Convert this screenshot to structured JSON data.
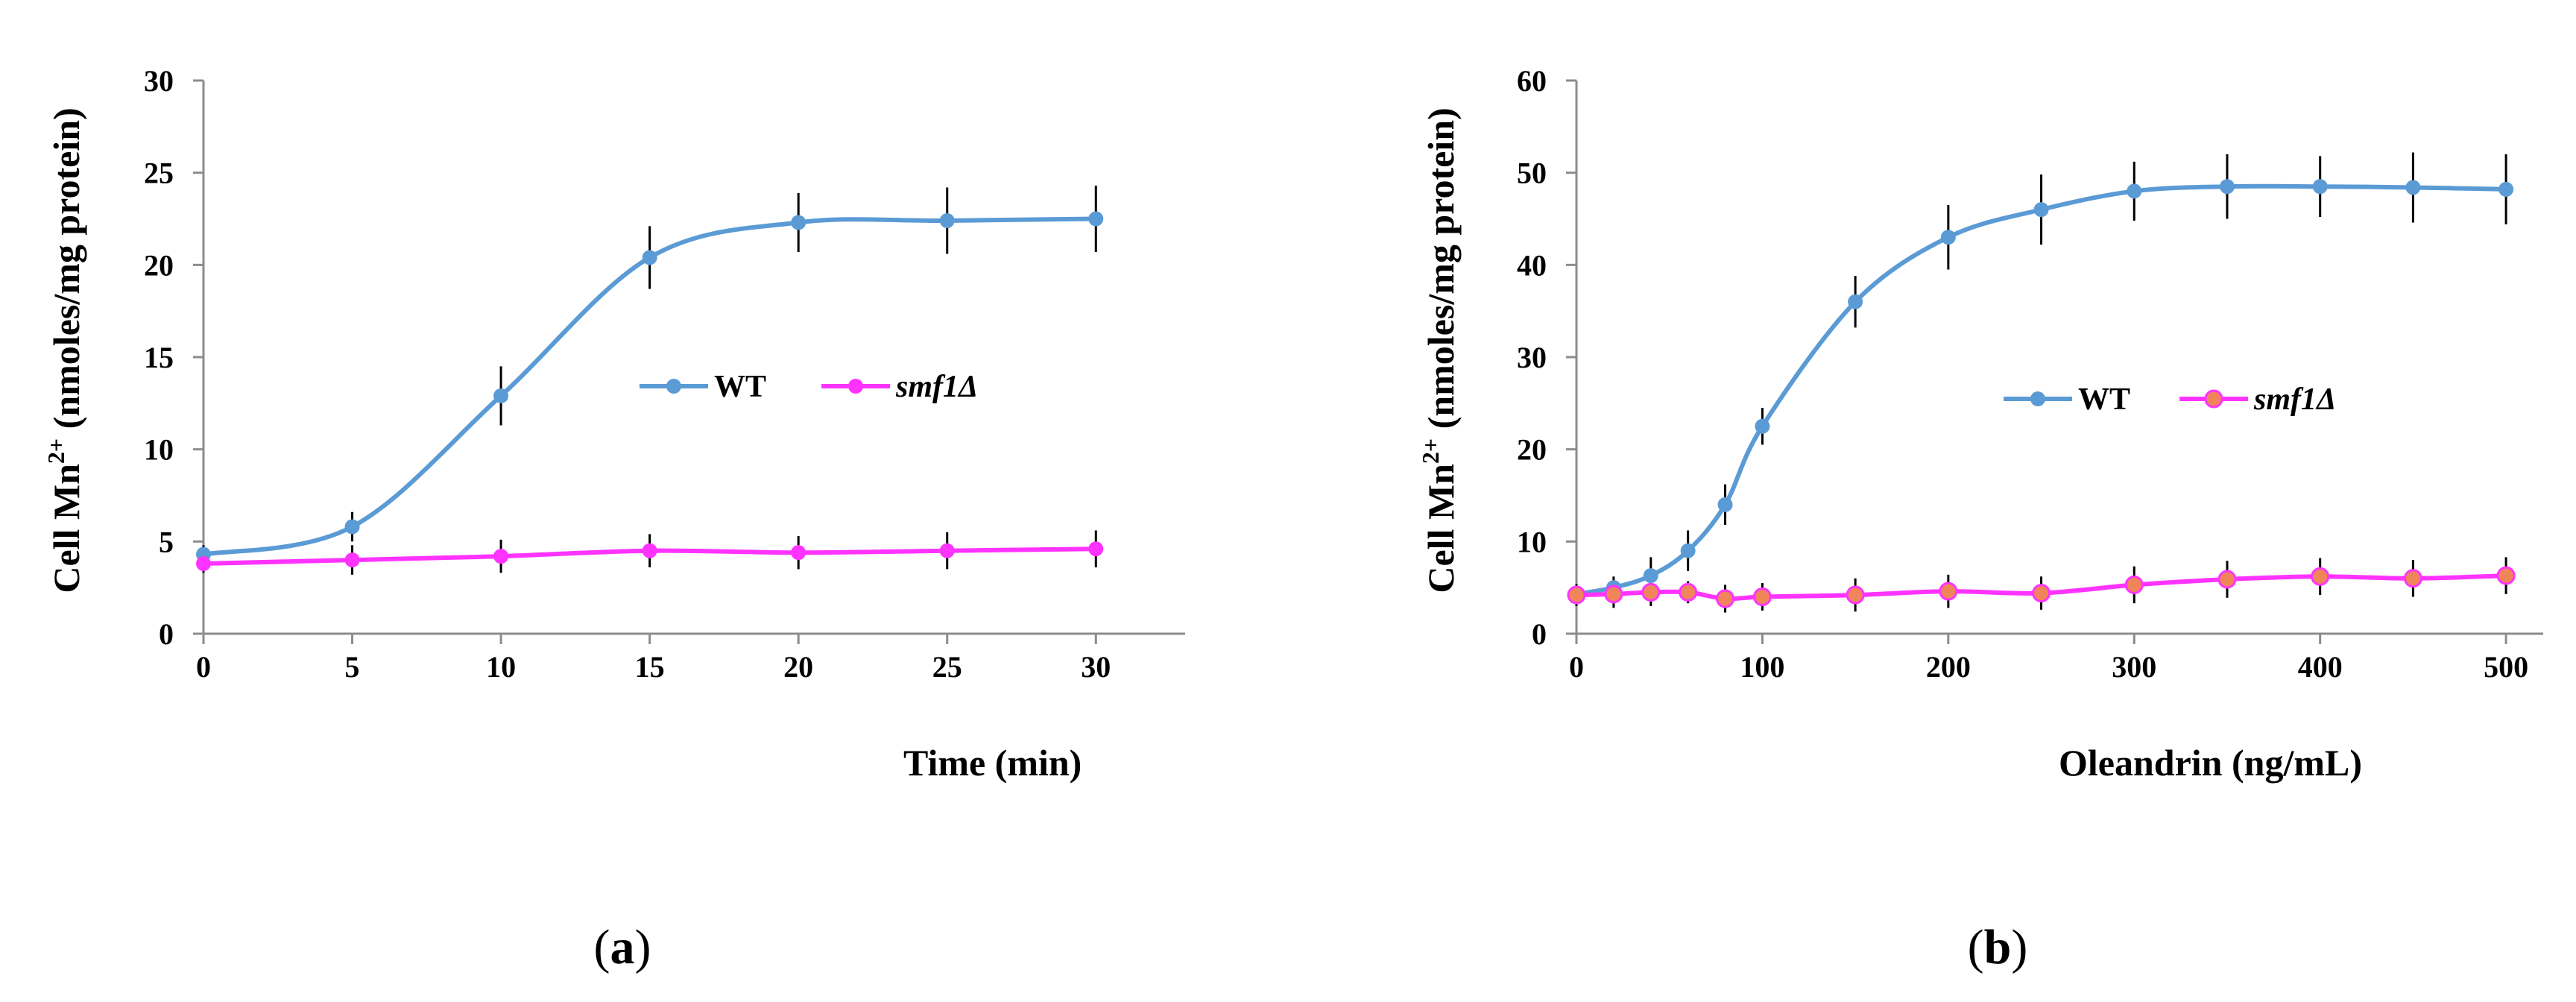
{
  "chart_data": [
    {
      "type": "line",
      "panel_label": "(a)",
      "panel_letter": "a",
      "xlabel": "Time (min)",
      "ylabel": "Cell Mn²⁺ (nmoles/mg protein)",
      "xlim": [
        0,
        33
      ],
      "ylim": [
        0,
        30
      ],
      "xticks": [
        0,
        5,
        10,
        15,
        20,
        25,
        30
      ],
      "yticks": [
        0,
        5,
        10,
        15,
        20,
        25,
        30
      ],
      "legend_position": "center-right",
      "series": [
        {
          "name": "WT",
          "color": "#5b9bd5",
          "x": [
            0,
            5,
            10,
            15,
            20,
            25,
            30
          ],
          "values": [
            4.3,
            5.8,
            12.9,
            20.4,
            22.3,
            22.4,
            22.5
          ],
          "errors": [
            0.5,
            0.8,
            1.6,
            1.7,
            1.6,
            1.8,
            1.8
          ]
        },
        {
          "name": "smf1Δ",
          "color": "#ff33ff",
          "x": [
            0,
            5,
            10,
            15,
            20,
            25,
            30
          ],
          "values": [
            3.8,
            4.0,
            4.2,
            4.5,
            4.4,
            4.5,
            4.6
          ],
          "errors": [
            0.5,
            0.8,
            0.9,
            0.9,
            0.9,
            1.0,
            1.0
          ]
        }
      ]
    },
    {
      "type": "line",
      "panel_label": "(b)",
      "panel_letter": "b",
      "xlabel": "Oleandrin (ng/mL)",
      "ylabel": "Cell Mn²⁺ (nmoles/mg protein)",
      "xlim": [
        0,
        520
      ],
      "ylim": [
        0,
        60
      ],
      "xticks": [
        0,
        100,
        200,
        300,
        400,
        500
      ],
      "yticks": [
        0,
        10,
        20,
        30,
        40,
        50,
        60
      ],
      "legend_position": "center-right",
      "series": [
        {
          "name": "WT",
          "color": "#5b9bd5",
          "x": [
            0,
            20,
            40,
            60,
            80,
            100,
            150,
            200,
            250,
            300,
            350,
            400,
            450,
            500
          ],
          "values": [
            4.3,
            5.0,
            6.3,
            9.0,
            14.0,
            22.5,
            36.0,
            43.0,
            46.0,
            48.0,
            48.5,
            48.5,
            48.4,
            48.2
          ],
          "errors": [
            1.0,
            1.2,
            2.0,
            2.2,
            2.2,
            2.0,
            2.8,
            3.5,
            3.8,
            3.2,
            3.5,
            3.3,
            3.8,
            3.8
          ]
        },
        {
          "name": "smf1Δ",
          "color": "#ff33ff",
          "marker_fill": "#f0855a",
          "x": [
            0,
            20,
            40,
            60,
            80,
            100,
            150,
            200,
            250,
            300,
            350,
            400,
            450,
            500
          ],
          "values": [
            4.2,
            4.3,
            4.5,
            4.5,
            3.8,
            4.0,
            4.2,
            4.6,
            4.4,
            5.3,
            5.9,
            6.2,
            6.0,
            6.3
          ],
          "errors": [
            1.2,
            1.5,
            1.5,
            1.2,
            1.5,
            1.5,
            1.8,
            1.8,
            1.8,
            2.0,
            2.0,
            2.0,
            2.0,
            2.0
          ]
        }
      ]
    }
  ]
}
